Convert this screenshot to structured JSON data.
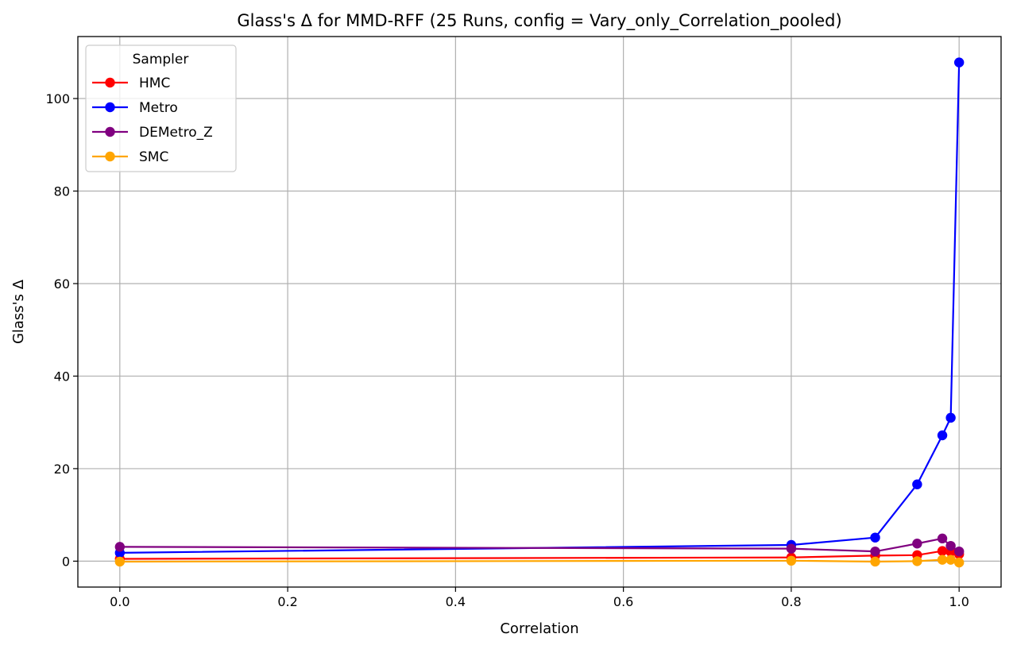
{
  "chart_data": {
    "type": "line",
    "title": "Glass's Δ for MMD-RFF (25 Runs, config = Vary_only_Correlation_pooled)",
    "xlabel": "Correlation",
    "ylabel": "Glass's Δ",
    "xlim": [
      -0.05,
      1.05
    ],
    "ylim": [
      -5.6,
      113.4
    ],
    "xticks": [
      0.0,
      0.2,
      0.4,
      0.6,
      0.8,
      1.0
    ],
    "xtick_labels": [
      "0.0",
      "0.2",
      "0.4",
      "0.6",
      "0.8",
      "1.0"
    ],
    "yticks": [
      0,
      20,
      40,
      60,
      80,
      100
    ],
    "ytick_labels": [
      "0",
      "20",
      "40",
      "60",
      "80",
      "100"
    ],
    "grid": true,
    "legend": {
      "title": "Sampler",
      "position": "upper-left"
    },
    "x": [
      0.0,
      0.8,
      0.9,
      0.95,
      0.98,
      0.99,
      1.0
    ],
    "series": [
      {
        "name": "HMC",
        "color": "#ff0000",
        "values": [
          0.5,
          0.8,
          1.2,
          1.3,
          2.2,
          2.0,
          1.5
        ]
      },
      {
        "name": "Metro",
        "color": "#0000ff",
        "values": [
          1.8,
          3.5,
          5.1,
          16.6,
          27.2,
          31.0,
          107.8
        ]
      },
      {
        "name": "DEMetro_Z",
        "color": "#800080",
        "values": [
          3.1,
          2.7,
          2.1,
          3.8,
          4.9,
          3.3,
          2.1
        ]
      },
      {
        "name": "SMC",
        "color": "#ffa500",
        "values": [
          -0.1,
          0.1,
          -0.1,
          0.0,
          0.3,
          0.3,
          -0.3
        ]
      }
    ]
  }
}
